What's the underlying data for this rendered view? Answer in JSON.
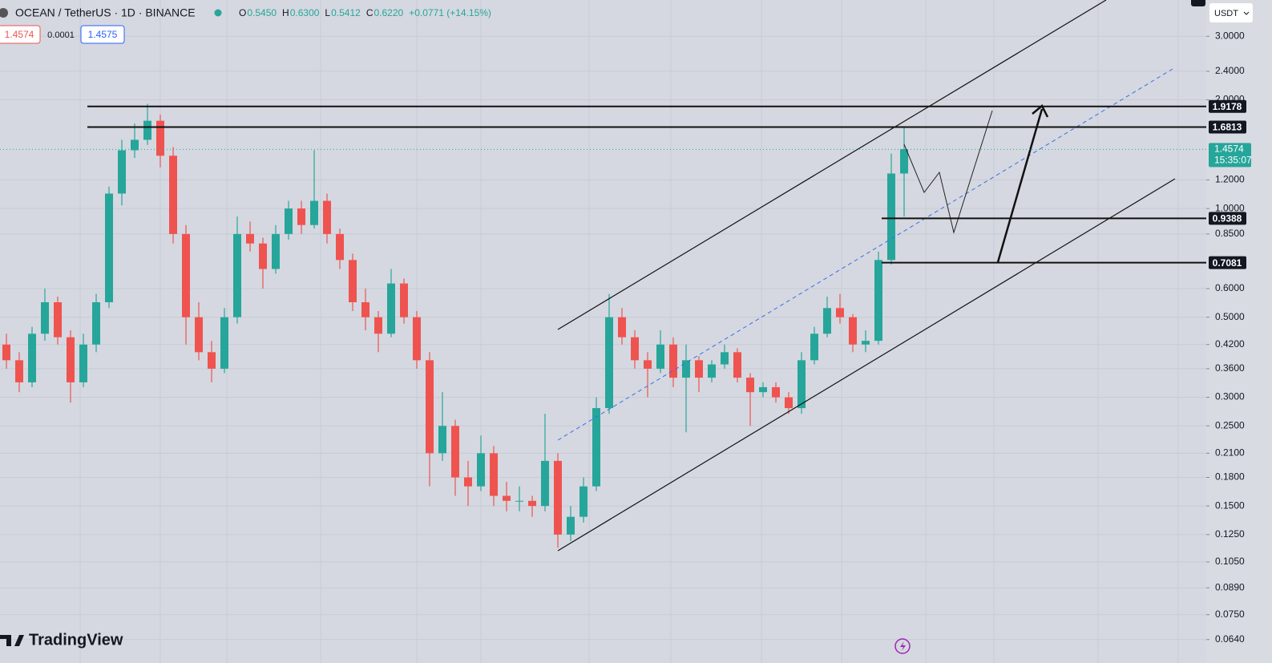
{
  "chart_data": {
    "type": "candlestick",
    "header": {
      "symbol": "OCEAN / TetherUS · 1D · BINANCE",
      "ohlc": [
        {
          "key": "O",
          "value": "0.5450"
        },
        {
          "key": "H",
          "value": "0.6300"
        },
        {
          "key": "L",
          "value": "0.5412"
        },
        {
          "key": "C",
          "value": "0.6220"
        }
      ],
      "change": "+0.0771 (+14.15%)",
      "bid": "1.4574",
      "spread": "0.0001",
      "ask": "1.4575"
    },
    "currency": "USDT",
    "brand": "TradingView",
    "log_scale": true,
    "grid": true,
    "up_color": "#26a69a",
    "down_color": "#ef5350",
    "ylim": [
      0.058,
      3.78
    ],
    "yticks": [
      {
        "value": 3,
        "label": "3.0000"
      },
      {
        "value": 2.4,
        "label": "2.4000"
      },
      {
        "value": 2,
        "label": "2.0000"
      },
      {
        "value": 1.2,
        "label": "1.2000"
      },
      {
        "value": 1,
        "label": "1.0000"
      },
      {
        "value": 0.85,
        "label": "0.8500"
      },
      {
        "value": 0.6,
        "label": "0.6000"
      },
      {
        "value": 0.5,
        "label": "0.5000"
      },
      {
        "value": 0.42,
        "label": "0.4200"
      },
      {
        "value": 0.36,
        "label": "0.3600"
      },
      {
        "value": 0.3,
        "label": "0.3000"
      },
      {
        "value": 0.25,
        "label": "0.2500"
      },
      {
        "value": 0.21,
        "label": "0.2100"
      },
      {
        "value": 0.18,
        "label": "0.1800"
      },
      {
        "value": 0.15,
        "label": "0.1500"
      },
      {
        "value": 0.125,
        "label": "0.1250"
      },
      {
        "value": 0.105,
        "label": "0.1050"
      },
      {
        "value": 0.089,
        "label": "0.0890"
      },
      {
        "value": 0.075,
        "label": "0.0750"
      },
      {
        "value": 0.064,
        "label": "0.0640"
      }
    ],
    "price_levels": [
      1.9178,
      1.6813,
      0.9388,
      0.7081
    ],
    "current_price": 1.4574,
    "countdown": "15:35:07",
    "candles": [
      [
        0.42,
        0.45,
        0.36,
        0.38
      ],
      [
        0.38,
        0.4,
        0.31,
        0.33
      ],
      [
        0.33,
        0.47,
        0.32,
        0.45
      ],
      [
        0.45,
        0.6,
        0.43,
        0.55
      ],
      [
        0.55,
        0.57,
        0.42,
        0.44
      ],
      [
        0.44,
        0.46,
        0.29,
        0.33
      ],
      [
        0.33,
        0.45,
        0.32,
        0.42
      ],
      [
        0.42,
        0.58,
        0.4,
        0.55
      ],
      [
        0.55,
        1.15,
        0.53,
        1.1
      ],
      [
        1.1,
        1.55,
        1.02,
        1.45
      ],
      [
        1.45,
        1.72,
        1.38,
        1.55
      ],
      [
        1.55,
        1.95,
        1.5,
        1.75
      ],
      [
        1.75,
        1.82,
        1.3,
        1.4
      ],
      [
        1.4,
        1.48,
        0.8,
        0.85
      ],
      [
        0.85,
        0.9,
        0.42,
        0.5
      ],
      [
        0.5,
        0.55,
        0.38,
        0.4
      ],
      [
        0.4,
        0.43,
        0.33,
        0.36
      ],
      [
        0.36,
        0.53,
        0.35,
        0.5
      ],
      [
        0.5,
        0.95,
        0.48,
        0.85
      ],
      [
        0.85,
        0.92,
        0.76,
        0.8
      ],
      [
        0.8,
        0.83,
        0.6,
        0.68
      ],
      [
        0.68,
        0.9,
        0.66,
        0.85
      ],
      [
        0.85,
        1.05,
        0.82,
        1.0
      ],
      [
        1.0,
        1.05,
        0.85,
        0.9
      ],
      [
        0.9,
        1.45,
        0.88,
        1.05
      ],
      [
        1.05,
        1.1,
        0.8,
        0.85
      ],
      [
        0.85,
        0.88,
        0.68,
        0.72
      ],
      [
        0.72,
        0.75,
        0.52,
        0.55
      ],
      [
        0.55,
        0.6,
        0.46,
        0.5
      ],
      [
        0.5,
        0.52,
        0.4,
        0.45
      ],
      [
        0.45,
        0.68,
        0.44,
        0.62
      ],
      [
        0.62,
        0.64,
        0.48,
        0.5
      ],
      [
        0.5,
        0.52,
        0.36,
        0.38
      ],
      [
        0.38,
        0.4,
        0.17,
        0.21
      ],
      [
        0.21,
        0.31,
        0.2,
        0.25
      ],
      [
        0.25,
        0.26,
        0.16,
        0.18
      ],
      [
        0.18,
        0.2,
        0.15,
        0.17
      ],
      [
        0.17,
        0.235,
        0.165,
        0.21
      ],
      [
        0.21,
        0.22,
        0.15,
        0.16
      ],
      [
        0.16,
        0.175,
        0.145,
        0.155
      ],
      [
        0.155,
        0.17,
        0.145,
        0.155
      ],
      [
        0.155,
        0.16,
        0.14,
        0.15
      ],
      [
        0.15,
        0.27,
        0.145,
        0.2
      ],
      [
        0.2,
        0.21,
        0.115,
        0.125
      ],
      [
        0.125,
        0.15,
        0.12,
        0.14
      ],
      [
        0.14,
        0.18,
        0.135,
        0.17
      ],
      [
        0.17,
        0.3,
        0.165,
        0.28
      ],
      [
        0.28,
        0.58,
        0.27,
        0.5
      ],
      [
        0.5,
        0.53,
        0.42,
        0.44
      ],
      [
        0.44,
        0.46,
        0.36,
        0.38
      ],
      [
        0.38,
        0.4,
        0.3,
        0.36
      ],
      [
        0.36,
        0.46,
        0.35,
        0.42
      ],
      [
        0.42,
        0.44,
        0.32,
        0.34
      ],
      [
        0.34,
        0.42,
        0.24,
        0.38
      ],
      [
        0.38,
        0.39,
        0.31,
        0.34
      ],
      [
        0.34,
        0.38,
        0.33,
        0.37
      ],
      [
        0.37,
        0.42,
        0.36,
        0.4
      ],
      [
        0.4,
        0.41,
        0.33,
        0.34
      ],
      [
        0.34,
        0.35,
        0.25,
        0.31
      ],
      [
        0.31,
        0.33,
        0.3,
        0.32
      ],
      [
        0.32,
        0.33,
        0.29,
        0.3
      ],
      [
        0.3,
        0.31,
        0.27,
        0.28
      ],
      [
        0.28,
        0.4,
        0.27,
        0.38
      ],
      [
        0.38,
        0.47,
        0.37,
        0.45
      ],
      [
        0.45,
        0.57,
        0.44,
        0.53
      ],
      [
        0.53,
        0.58,
        0.48,
        0.5
      ],
      [
        0.5,
        0.51,
        0.4,
        0.42
      ],
      [
        0.42,
        0.46,
        0.4,
        0.43
      ],
      [
        0.43,
        0.76,
        0.42,
        0.72
      ],
      [
        0.72,
        1.42,
        0.7,
        1.25
      ],
      [
        1.25,
        1.68,
        0.95,
        1.46
      ]
    ]
  }
}
